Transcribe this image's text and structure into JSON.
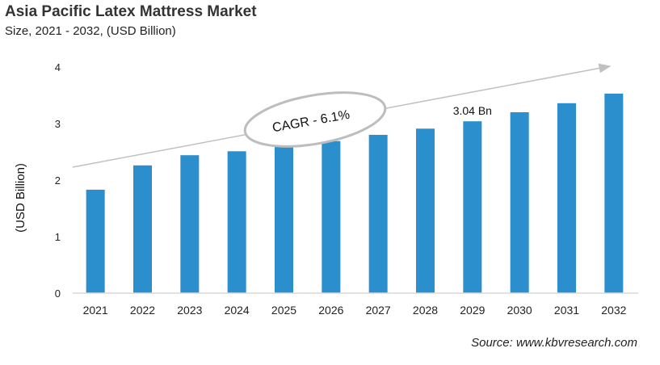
{
  "chart_data": {
    "type": "bar",
    "title": "Asia Pacific Latex Mattress Market",
    "subtitle": "Size, 2021 - 2032, (USD Billion)",
    "xlabel": "",
    "ylabel": "(USD Billion)",
    "categories": [
      "2021",
      "2022",
      "2023",
      "2024",
      "2025",
      "2026",
      "2027",
      "2028",
      "2029",
      "2030",
      "2031",
      "2032"
    ],
    "values": [
      1.83,
      2.26,
      2.44,
      2.51,
      2.6,
      2.69,
      2.8,
      2.91,
      3.04,
      3.2,
      3.36,
      3.53
    ],
    "ylim": [
      0,
      4
    ],
    "yticks": [
      "0",
      "1",
      "2",
      "3",
      "4"
    ],
    "grid": false,
    "bar_color": "#2b8fcd",
    "annotations": {
      "cagr": "CAGR - 6.1%",
      "data_label": "3.04 Bn",
      "data_label_category": "2029"
    },
    "source": "Source: www.kbvresearch.com"
  }
}
